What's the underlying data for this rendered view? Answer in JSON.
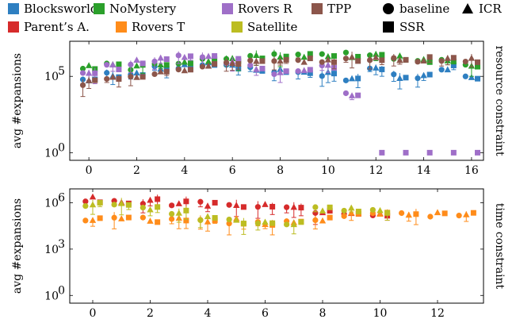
{
  "legend": {
    "domains": [
      {
        "name": "Blocksworld",
        "color": "#2e7fc1"
      },
      {
        "name": "Parent’s A.",
        "color": "#d62b2b"
      },
      {
        "name": "NoMystery",
        "color": "#2ba02b"
      },
      {
        "name": "Rovers T",
        "color": "#ff8c1a"
      },
      {
        "name": "Rovers R",
        "color": "#9f6fc8"
      },
      {
        "name": "Satellite",
        "color": "#bcbd22"
      },
      {
        "name": "TPP",
        "color": "#8c564b"
      }
    ],
    "markers": [
      {
        "name": "baseline",
        "shape": "circle"
      },
      {
        "name": "ICR",
        "shape": "triangle"
      },
      {
        "name": "SSR",
        "shape": "square"
      }
    ]
  },
  "chart_data": [
    {
      "type": "scatter",
      "ylabel": "avg #expansions",
      "right_label": "resource constraint",
      "yscale": "log",
      "xlim": [
        -0.8,
        16.5
      ],
      "ylim_exp": [
        -0.5,
        7.3
      ],
      "x_ticks": [
        0,
        2,
        4,
        6,
        8,
        10,
        12,
        14,
        16
      ],
      "y_ticks": [
        {
          "label": "10",
          "exp": "0",
          "value_exp": 0
        },
        {
          "label": "10",
          "exp": "5",
          "value_exp": 5
        }
      ],
      "series": [
        {
          "name": "Blocksworld",
          "x": [
            0,
            1,
            2,
            3,
            4,
            5,
            6,
            7,
            8,
            9,
            10,
            11,
            12,
            13,
            14,
            15,
            16
          ],
          "y_exp": [
            4.8,
            5.1,
            5.2,
            5.5,
            5.6,
            5.8,
            5.6,
            5.5,
            5.3,
            5.3,
            5.1,
            4.9,
            5.6,
            5.0,
            5.0,
            5.6,
            5.0
          ]
        },
        {
          "name": "NoMystery",
          "x": [
            0,
            1,
            2,
            3,
            4,
            5,
            6,
            7,
            8,
            9,
            10,
            11,
            12,
            13,
            14,
            15,
            16
          ],
          "y_exp": [
            5.6,
            5.8,
            5.6,
            5.9,
            5.9,
            6.0,
            6.0,
            6.2,
            6.3,
            6.3,
            6.4,
            6.4,
            6.3,
            6.2,
            6.1,
            6.0,
            5.8
          ]
        },
        {
          "name": "Rovers R",
          "x": [
            0,
            1,
            2,
            3,
            4,
            5,
            6,
            7,
            8,
            9,
            10,
            11,
            12,
            13,
            14,
            15,
            16
          ],
          "y_exp": [
            5.3,
            5.6,
            5.9,
            6.1,
            6.3,
            6.3,
            6.0,
            5.6,
            5.3,
            5.5,
            5.7,
            3.9,
            0.0,
            0.0,
            0.0,
            0.0,
            0.0
          ]
        },
        {
          "name": "TPP",
          "x": [
            0,
            1,
            2,
            3,
            4,
            5,
            6,
            7,
            8,
            9,
            10,
            11,
            12,
            13,
            14,
            15,
            16
          ],
          "y_exp": [
            4.6,
            4.9,
            5.1,
            5.3,
            5.5,
            5.7,
            5.9,
            6.0,
            6.1,
            6.1,
            6.1,
            6.1,
            6.1,
            6.1,
            6.1,
            6.1,
            6.1
          ]
        }
      ]
    },
    {
      "type": "scatter",
      "ylabel": "avg #expansions",
      "right_label": "time constraint",
      "yscale": "log",
      "xlim": [
        -0.8,
        13.6
      ],
      "ylim_exp": [
        -0.5,
        6.9
      ],
      "x_ticks": [
        0,
        2,
        4,
        6,
        8,
        10,
        12
      ],
      "y_ticks": [
        {
          "label": "10",
          "exp": "0",
          "value_exp": 0
        },
        {
          "label": "10",
          "exp": "3",
          "value_exp": 3
        },
        {
          "label": "10",
          "exp": "6",
          "value_exp": 6
        }
      ],
      "series": [
        {
          "name": "Parent’s A.",
          "x": [
            0,
            1,
            2,
            3,
            4,
            5,
            6,
            7,
            8,
            9,
            10
          ],
          "y_exp": [
            6.2,
            6.1,
            6.1,
            6.0,
            5.9,
            5.9,
            5.8,
            5.6,
            5.5,
            5.4,
            5.3
          ]
        },
        {
          "name": "Rovers T",
          "x": [
            0,
            1,
            2,
            3,
            4,
            5,
            6,
            7,
            8,
            9,
            10,
            11,
            12,
            13
          ],
          "y_exp": [
            5.0,
            5.0,
            4.9,
            4.9,
            4.8,
            4.8,
            4.7,
            4.7,
            5.0,
            5.2,
            5.4,
            5.3,
            5.2,
            5.2
          ]
        },
        {
          "name": "Satellite",
          "x": [
            0,
            1,
            2,
            3,
            4,
            5,
            6,
            7,
            8,
            9,
            10
          ],
          "y_exp": [
            5.9,
            5.8,
            5.6,
            5.4,
            5.0,
            4.8,
            4.7,
            4.6,
            5.6,
            5.5,
            5.5
          ]
        }
      ]
    }
  ]
}
